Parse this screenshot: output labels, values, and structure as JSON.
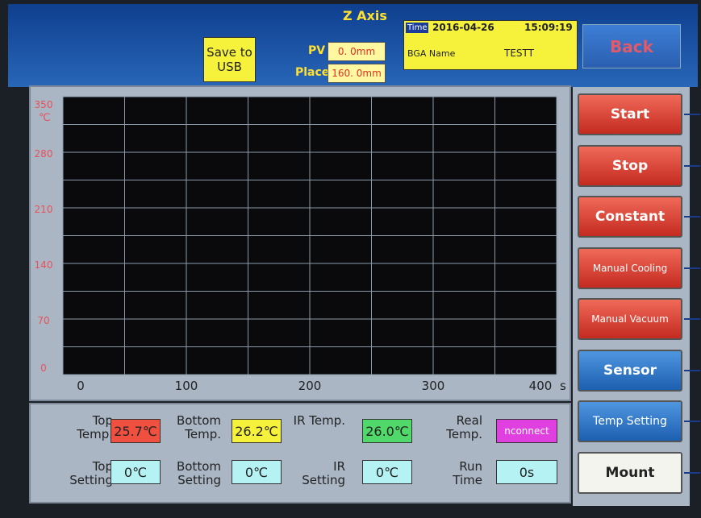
{
  "header": {
    "save_button": "Save to USB",
    "z_axis": {
      "title": "Z Axis",
      "pv_label": "PV",
      "pv_value": "0. 0mm",
      "place_label": "Place",
      "place_value": "160. 0mm"
    },
    "time": {
      "label": "Time",
      "date": "2016-04-26",
      "clock": "15:09:19"
    },
    "bga": {
      "label": "BGA Name",
      "value": "TESTT"
    },
    "back_button": "Back"
  },
  "chart_data": {
    "type": "line",
    "series": [],
    "xlim": [
      0,
      400
    ],
    "ylim": [
      0,
      350
    ],
    "xticks": [
      0,
      100,
      200,
      300,
      400
    ],
    "yticks": [
      0,
      70,
      140,
      210,
      280,
      350
    ],
    "xlabel": "s",
    "ylabel": "℃",
    "grid": true
  },
  "buttons": [
    "Start",
    "Stop",
    "Constant",
    "Manual Cooling",
    "Manual Vacuum",
    "Sensor",
    "Temp Setting",
    "Mount"
  ],
  "readings": [
    {
      "label": "Top Temp.",
      "value": "25.7℃"
    },
    {
      "label": "Bottom Temp.",
      "value": "26.2℃"
    },
    {
      "label": "IR Temp.",
      "value": "26.0℃"
    },
    {
      "label": "Real Temp.",
      "value": "nconnect"
    }
  ],
  "settings": [
    {
      "label": "Top Setting",
      "value": "0℃"
    },
    {
      "label": "Bottom Setting",
      "value": "0℃"
    },
    {
      "label": "IR Setting",
      "value": "0℃"
    },
    {
      "label": "Run Time",
      "value": "0s"
    }
  ]
}
